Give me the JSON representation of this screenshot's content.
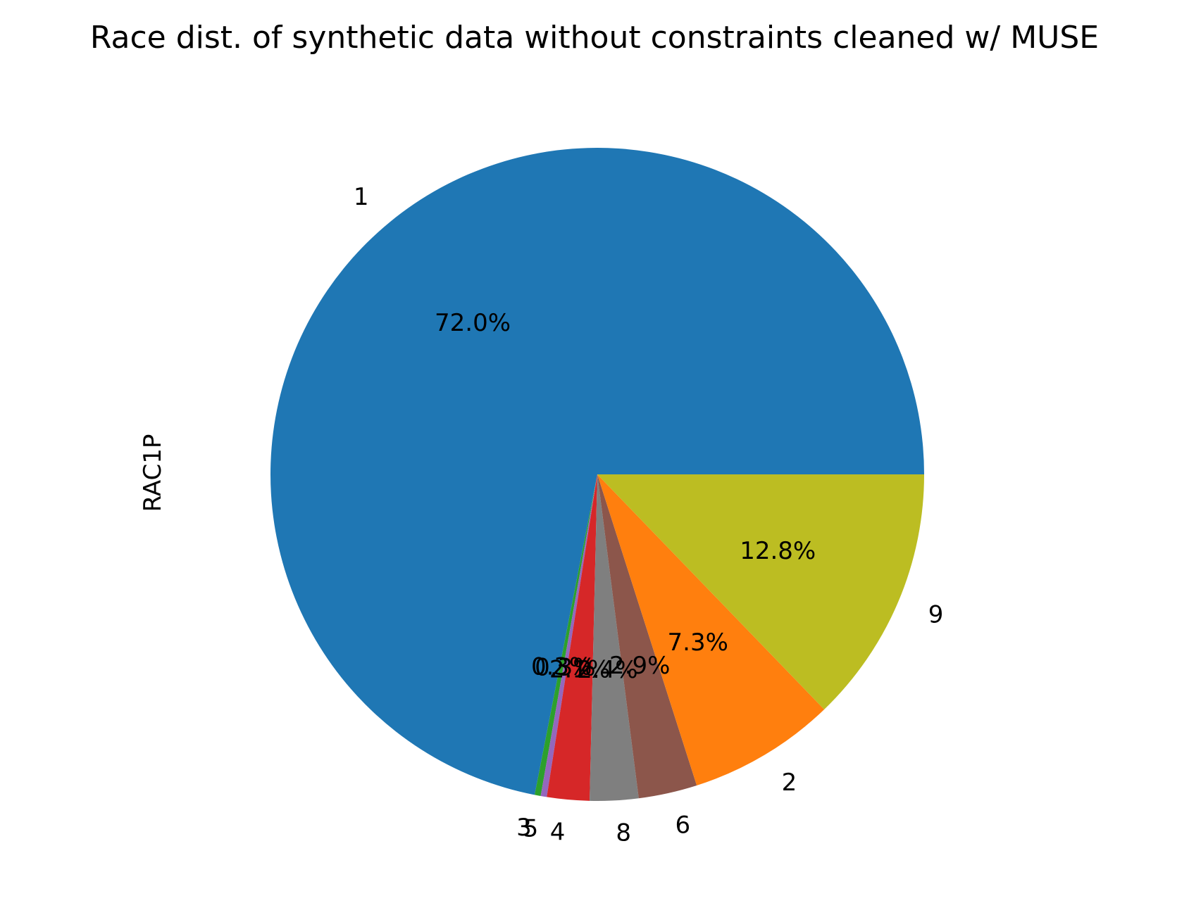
{
  "chart_data": {
    "type": "pie",
    "title": "Race dist. of synthetic data without constraints cleaned w/ MUSE",
    "ylabel": "RAC1P",
    "slices": [
      {
        "label": "1",
        "value": 72.0,
        "pct_label": "72.0%",
        "color": "#1f77b4"
      },
      {
        "label": "3",
        "value": 0.3,
        "pct_label": "0.3%",
        "color": "#2ca02c"
      },
      {
        "label": "5",
        "value": 0.3,
        "pct_label": "0.3%",
        "color": "#9467bd"
      },
      {
        "label": "4",
        "value": 2.1,
        "pct_label": "2.1%",
        "color": "#d62728"
      },
      {
        "label": "8",
        "value": 2.4,
        "pct_label": "2.4%",
        "color": "#7f7f7f"
      },
      {
        "label": "6",
        "value": 2.9,
        "pct_label": "2.9%",
        "color": "#8c564b"
      },
      {
        "label": "2",
        "value": 7.3,
        "pct_label": "7.3%",
        "color": "#ff7f0e"
      },
      {
        "label": "9",
        "value": 12.8,
        "pct_label": "12.8%",
        "color": "#bcbd22"
      }
    ],
    "start_angle_deg": 0,
    "direction": "counterclockwise"
  }
}
